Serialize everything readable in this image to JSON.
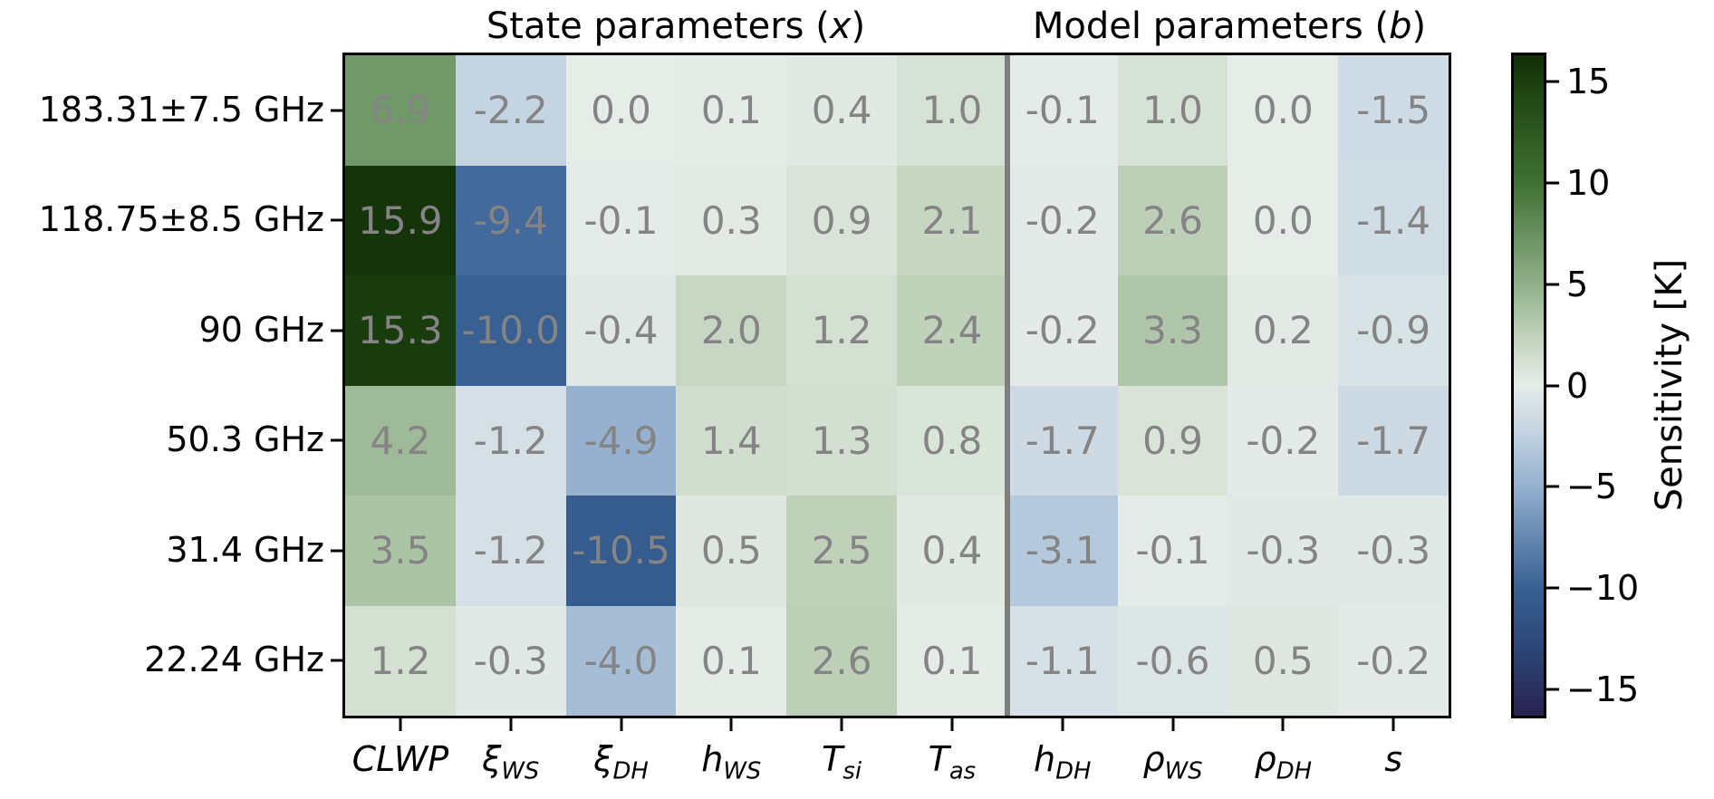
{
  "chart_data": {
    "type": "heatmap",
    "group_titles": [
      {
        "prefix": "State parameters (",
        "var": "x",
        "suffix": ")"
      },
      {
        "prefix": "Model parameters (",
        "var": "b",
        "suffix": ")"
      }
    ],
    "rows": [
      "183.31±7.5 GHz",
      "118.75±8.5 GHz",
      "90 GHz",
      "50.3 GHz",
      "31.4 GHz",
      "22.24 GHz"
    ],
    "columns": [
      {
        "base": "CLWP",
        "sub": ""
      },
      {
        "base": "ξ",
        "sub": "WS"
      },
      {
        "base": "ξ",
        "sub": "DH"
      },
      {
        "base": "h",
        "sub": "WS"
      },
      {
        "base": "T",
        "sub": "si"
      },
      {
        "base": "T",
        "sub": "as"
      },
      {
        "base": "h",
        "sub": "DH"
      },
      {
        "base": "ρ",
        "sub": "WS"
      },
      {
        "base": "ρ",
        "sub": "DH"
      },
      {
        "base": "s",
        "sub": ""
      }
    ],
    "state_column_count": 6,
    "values": [
      [
        6.9,
        -2.2,
        -0.0,
        0.1,
        0.4,
        1.0,
        -0.1,
        1.0,
        -0.0,
        -1.5
      ],
      [
        15.9,
        -9.4,
        -0.1,
        0.3,
        0.9,
        2.1,
        -0.2,
        2.6,
        -0.0,
        -1.4
      ],
      [
        15.3,
        -10.0,
        -0.4,
        2.0,
        1.2,
        2.4,
        -0.2,
        3.3,
        0.2,
        -0.9
      ],
      [
        4.2,
        -1.2,
        -4.9,
        1.4,
        1.3,
        0.8,
        -1.7,
        0.9,
        -0.2,
        -1.7
      ],
      [
        3.5,
        -1.2,
        -10.5,
        0.5,
        2.5,
        0.4,
        -3.1,
        -0.1,
        -0.3,
        -0.3
      ],
      [
        1.2,
        -0.3,
        -4.0,
        0.1,
        2.6,
        0.1,
        -1.1,
        -0.6,
        0.5,
        -0.2
      ]
    ],
    "colorbar": {
      "label": "Sensitivity [K]",
      "ticks": [
        15,
        10,
        5,
        0,
        -5,
        -10,
        -15
      ],
      "vmin": -16.3,
      "vmax": 16.3,
      "colormap_stops": [
        [
          16.3,
          "#122e08"
        ],
        [
          15.0,
          "#1b400e"
        ],
        [
          10.0,
          "#3f7133"
        ],
        [
          5.0,
          "#90b089"
        ],
        [
          2.0,
          "#c8d7c3"
        ],
        [
          0.5,
          "#dfe8e0"
        ],
        [
          0.0,
          "#e6ece8"
        ],
        [
          -0.5,
          "#dee7e6"
        ],
        [
          -2.0,
          "#c9d7e4"
        ],
        [
          -5.0,
          "#93b0ce"
        ],
        [
          -10.0,
          "#386093"
        ],
        [
          -13.0,
          "#2b4677"
        ],
        [
          -16.3,
          "#292350"
        ]
      ]
    },
    "annotation_color": "#848484",
    "separator_color": "#7e7e7e"
  }
}
